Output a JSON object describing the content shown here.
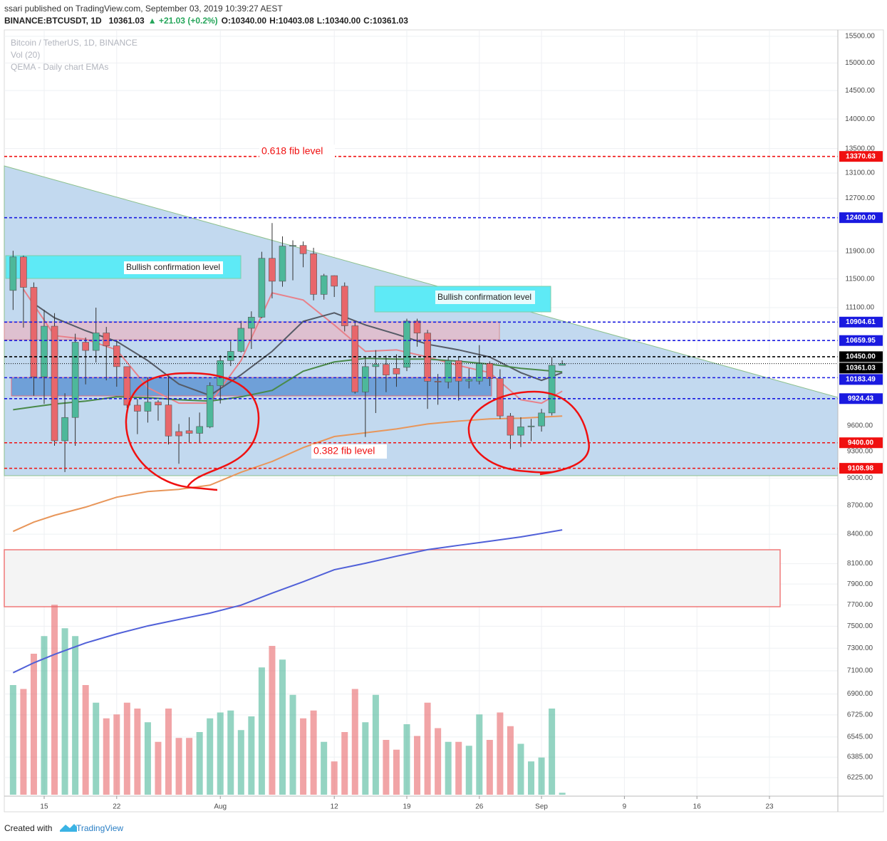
{
  "header": {
    "published": "ssari published on TradingView.com, September 03, 2019 10:39:27 AEST",
    "symbol": "BINANCE:BTCUSDT, 1D",
    "last": "10361.03",
    "change": "▲ +21.03 (+0.2%)",
    "open": "O:10340.00",
    "high": "H:10403.08",
    "low": "L:10340.00",
    "close": "C:10361.03"
  },
  "footer": {
    "created": "Created with",
    "brand": "TradingView"
  },
  "chart_data": {
    "type": "candlestick",
    "title": "Bitcoin / TetherUS, 1D, BINANCE",
    "indicators": [
      "Vol (20)",
      "QEMA - Daily chart EMAs"
    ],
    "annotations": [
      "0.618 fib level",
      "0.382 fib level",
      "Bullish confirmation level",
      "Bullish confirmation level"
    ],
    "x": [
      0,
      1,
      2,
      3,
      4,
      5,
      6,
      7,
      8,
      9,
      10,
      11,
      12,
      13,
      14,
      15,
      16,
      17,
      18,
      19,
      20,
      21,
      22,
      23,
      24,
      25,
      26,
      27,
      28,
      29,
      30,
      31,
      32,
      33,
      34,
      35,
      36,
      37,
      38,
      39,
      40,
      41,
      42,
      43,
      44,
      45,
      46,
      47,
      48,
      49,
      50,
      51,
      52,
      53
    ],
    "open": [
      11338,
      11815,
      11381,
      10195,
      10850,
      9423,
      9697,
      10638,
      10531,
      10760,
      10591,
      10323,
      9845,
      9772,
      9882,
      9847,
      9530,
      9540,
      9510,
      9585,
      10085,
      10400,
      10519,
      10822,
      10971,
      11795,
      11467,
      11974,
      11983,
      11862,
      11283,
      11546,
      11397,
      10855,
      10007,
      10323,
      10351,
      10300,
      10314,
      10918,
      10758,
      10139,
      10129,
      10400,
      10141,
      10141,
      10365,
      10172,
      9715,
      9488,
      9586,
      9596,
      9751,
      10340
    ],
    "high": [
      11905,
      11835,
      11450,
      11070,
      11025,
      9990,
      10750,
      10700,
      11100,
      10840,
      10656,
      10323,
      9920,
      10188,
      9905,
      10197,
      9620,
      9700,
      9756,
      10125,
      10468,
      10650,
      10920,
      11050,
      11890,
      12318,
      12118,
      12059,
      12042,
      11949,
      11572,
      11550,
      11450,
      10900,
      10450,
      10535,
      10465,
      10480,
      10950,
      10950,
      10800,
      10230,
      10450,
      10450,
      10300,
      10600,
      10390,
      10290,
      9750,
      9700,
      9680,
      9800,
      10445,
      10403.08
    ],
    "low": [
      11069,
      10830,
      9960,
      9860,
      9366,
      9067,
      9365,
      10100,
      10376,
      10150,
      10071,
      9810,
      9500,
      9636,
      9659,
      9380,
      9160,
      9400,
      9395,
      9570,
      9865,
      10330,
      10505,
      10550,
      10958,
      11228,
      11390,
      11480,
      11666,
      11200,
      11210,
      11247,
      10780,
      9987,
      9467,
      9750,
      10004,
      10070,
      10266,
      10580,
      9800,
      9850,
      10050,
      9900,
      10050,
      10100,
      10080,
      9680,
      9328,
      9350,
      9420,
      9530,
      9720,
      10340
    ],
    "close": [
      11815,
      11381,
      10195,
      10850,
      9423,
      9697,
      10638,
      10531,
      10760,
      10591,
      10323,
      9845,
      9772,
      9882,
      9847,
      9478,
      9480,
      9510,
      9590,
      10085,
      10400,
      10519,
      10822,
      10971,
      11795,
      11467,
      11974,
      11983,
      11862,
      11283,
      11546,
      11397,
      10855,
      10007,
      10323,
      10351,
      10217,
      10230,
      10918,
      10758,
      10139,
      10129,
      10400,
      10141,
      10160,
      10365,
      10172,
      9715,
      9488,
      9586,
      9596,
      9751,
      10340,
      10361.03
    ],
    "volume": [
      56,
      54,
      72,
      81,
      97,
      85,
      81,
      56,
      47,
      39,
      41,
      47,
      44,
      37,
      27,
      44,
      29,
      29,
      32,
      39,
      42,
      43,
      33,
      40,
      65,
      76,
      69,
      51,
      39,
      43,
      27,
      17,
      32,
      54,
      37,
      51,
      28,
      23,
      36,
      30,
      47,
      34,
      27,
      27,
      25,
      41,
      28,
      42,
      35,
      26,
      17,
      19,
      44,
      1
    ],
    "up_color": "#4db89a",
    "down_color": "#e8676b",
    "lines": [
      {
        "color": "#e8818a",
        "x": [
          1,
          4,
          7,
          10,
          13,
          16,
          19,
          22,
          25,
          28,
          31,
          34,
          37,
          40,
          43,
          46,
          49,
          51,
          53
        ],
        "values": [
          11353,
          10724,
          10677,
          10538,
          10060,
          9869,
          9869,
          10400,
          11304,
          11205,
          10866,
          10519,
          10538,
          10446,
          10337,
          10247,
          9911,
          9869,
          10016
        ]
      },
      {
        "color": "#555b66",
        "x": [
          2,
          4,
          7,
          10,
          13,
          16,
          19,
          22,
          25,
          28,
          31,
          34,
          37,
          40,
          43,
          46,
          49,
          51,
          53
        ],
        "values": [
          11156,
          10962,
          10790,
          10649,
          10400,
          10104,
          9963,
          10220,
          10519,
          10914,
          11030,
          10866,
          10743,
          10611,
          10538,
          10446,
          10247,
          10150,
          10247
        ]
      },
      {
        "color": "#4a8a4a",
        "x": [
          0,
          2,
          4,
          7,
          10,
          13,
          16,
          19,
          22,
          25,
          28,
          31,
          34,
          37,
          40,
          43,
          46,
          49,
          53
        ],
        "values": [
          9790,
          9825,
          9859,
          9894,
          9946,
          9937,
          9911,
          9894,
          9946,
          10025,
          10265,
          10383,
          10428,
          10419,
          10419,
          10392,
          10355,
          10301,
          10256
        ]
      },
      {
        "color": "#e8965a",
        "x": [
          0,
          2,
          4,
          7,
          10,
          13,
          16,
          19,
          22,
          25,
          28,
          31,
          34,
          37,
          40,
          43,
          46,
          49,
          53
        ],
        "values": [
          8429,
          8525,
          8597,
          8684,
          8791,
          8852,
          8876,
          8922,
          9065,
          9186,
          9344,
          9472,
          9516,
          9561,
          9620,
          9654,
          9680,
          9688,
          9714
        ]
      },
      {
        "color": "#5060d8",
        "x": [
          0,
          2,
          4,
          7,
          10,
          13,
          16,
          19,
          22,
          25,
          28,
          31,
          34,
          37,
          40,
          43,
          46,
          49,
          53
        ],
        "values": [
          7083,
          7170,
          7245,
          7347,
          7430,
          7503,
          7563,
          7622,
          7697,
          7812,
          7922,
          8040,
          8104,
          8175,
          8241,
          8285,
          8327,
          8371,
          8444
        ]
      }
    ],
    "levels": [
      {
        "value": 13370.63,
        "label": "13370.63",
        "color": "#f01010",
        "style": "dashed"
      },
      {
        "value": 12400,
        "label": "12400.00",
        "color": "#1a1ae0",
        "style": "dashed"
      },
      {
        "value": 10904.61,
        "label": "10904.61",
        "color": "#1a1ae0",
        "style": "dashed"
      },
      {
        "value": 10659.95,
        "label": "10659.95",
        "color": "#1a1ae0",
        "style": "dashed"
      },
      {
        "value": 10450,
        "label": "10450.00",
        "color": "#000000",
        "style": "dashed"
      },
      {
        "value": 10361.03,
        "label": "10361.03",
        "color": "#000000",
        "style": "dotted"
      },
      {
        "value": 10183.49,
        "label": "10183.49",
        "color": "#1a1ae0",
        "style": "dashed"
      },
      {
        "value": 9924.43,
        "label": "9924.43",
        "color": "#1a1ae0",
        "style": "dashed"
      },
      {
        "value": 9400,
        "label": "9400.00",
        "color": "#f01010",
        "style": "dashed"
      },
      {
        "value": 9108.98,
        "label": "9108.98",
        "color": "#f01010",
        "style": "dashed"
      }
    ],
    "log_scale": true,
    "grid": true,
    "xlim": [
      -0.85,
      79.6
    ],
    "xticks": [
      {
        "value": 3,
        "label": "15"
      },
      {
        "value": 10,
        "label": "22"
      },
      {
        "value": 20,
        "label": "Aug"
      },
      {
        "value": 31,
        "label": "12"
      },
      {
        "value": 38,
        "label": "19"
      },
      {
        "value": 45,
        "label": "26"
      },
      {
        "value": 51,
        "label": "Sep"
      },
      {
        "value": 59,
        "label": "9"
      },
      {
        "value": 66,
        "label": "16"
      },
      {
        "value": 73,
        "label": "23"
      }
    ],
    "ylim": [
      6085,
      15623
    ],
    "yticks": [
      {
        "value": 15500,
        "label": "15500.00"
      },
      {
        "value": 15000,
        "label": "15000.00"
      },
      {
        "value": 14500,
        "label": "14500.00"
      },
      {
        "value": 14000,
        "label": "14000.00"
      },
      {
        "value": 13500,
        "label": "13500.00"
      },
      {
        "value": 13100,
        "label": "13100.00"
      },
      {
        "value": 12700,
        "label": "12700.00"
      },
      {
        "value": 11900,
        "label": "11900.00"
      },
      {
        "value": 11500,
        "label": "11500.00"
      },
      {
        "value": 11100,
        "label": "11100.00"
      },
      {
        "value": 9600,
        "label": "9600.00"
      },
      {
        "value": 9300,
        "label": "9300.00"
      },
      {
        "value": 9000,
        "label": "9000.00"
      },
      {
        "value": 8700,
        "label": "8700.00"
      },
      {
        "value": 8400,
        "label": "8400.00"
      },
      {
        "value": 8100,
        "label": "8100.00"
      },
      {
        "value": 7900,
        "label": "7900.00"
      },
      {
        "value": 7700,
        "label": "7700.00"
      },
      {
        "value": 7500,
        "label": "7500.00"
      },
      {
        "value": 7300,
        "label": "7300.00"
      },
      {
        "value": 7100,
        "label": "7100.00"
      },
      {
        "value": 6900,
        "label": "6900.00"
      },
      {
        "value": 6725,
        "label": "6725.00"
      },
      {
        "value": 6545,
        "label": "6545.00"
      },
      {
        "value": 6385,
        "label": "6385.00"
      },
      {
        "value": 6225,
        "label": "6225.00"
      }
    ],
    "vlim": [
      0,
      100
    ]
  }
}
